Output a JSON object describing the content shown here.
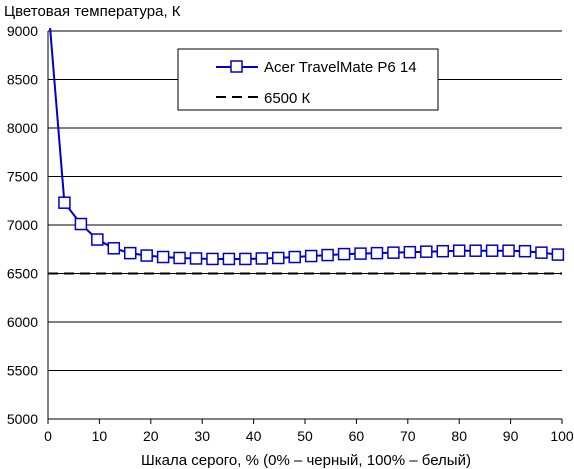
{
  "chart_data": {
    "type": "line",
    "title": "",
    "ylabel": "Цветовая температура, К",
    "xlabel": "Шкала серого, % (0% – черный, 100% – белый)",
    "xlim": [
      0,
      100
    ],
    "ylim": [
      5000,
      9000
    ],
    "x_ticks": [
      0,
      10,
      20,
      30,
      40,
      50,
      60,
      70,
      80,
      90,
      100
    ],
    "y_ticks": [
      5000,
      5500,
      6000,
      6500,
      7000,
      7500,
      8000,
      8500,
      9000
    ],
    "grid": "horizontal",
    "legend_position": "top-center",
    "series": [
      {
        "name": "Acer TravelMate P6 14",
        "color": "#0000cc",
        "marker": "square",
        "x": [
          0.4,
          3.2,
          6.4,
          9.6,
          12.8,
          16,
          19.2,
          22.4,
          25.6,
          28.8,
          32,
          35.2,
          38.4,
          41.6,
          44.8,
          48,
          51.2,
          54.4,
          57.6,
          60.8,
          64,
          67.2,
          70.4,
          73.6,
          76.8,
          80,
          83.2,
          86.4,
          89.6,
          92.8,
          96,
          99.2
        ],
        "y": [
          9030,
          7230,
          7010,
          6850,
          6760,
          6710,
          6685,
          6670,
          6660,
          6655,
          6650,
          6650,
          6650,
          6655,
          6660,
          6670,
          6680,
          6690,
          6700,
          6705,
          6710,
          6715,
          6720,
          6725,
          6730,
          6735,
          6735,
          6735,
          6735,
          6730,
          6715,
          6695
        ]
      },
      {
        "name": "6500 К",
        "color": "#000000",
        "line_style": "dashed",
        "x": [
          0,
          100
        ],
        "y": [
          6500,
          6500
        ]
      }
    ]
  }
}
